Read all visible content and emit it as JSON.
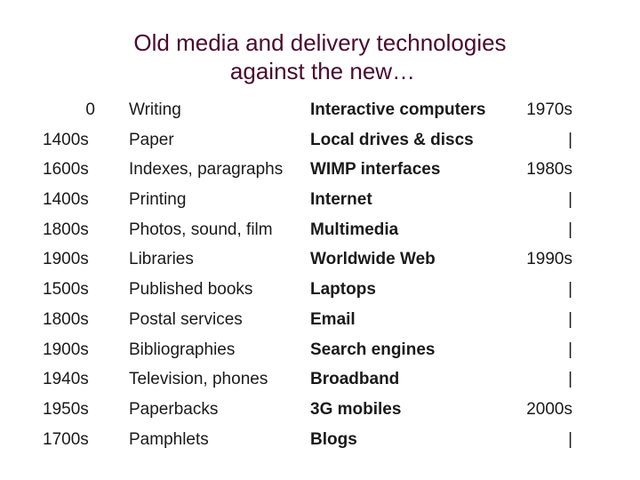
{
  "slide": {
    "title_line1": "Old media and delivery technologies",
    "title_line2": "against the new…",
    "rows": [
      {
        "date": "0",
        "old": "Writing",
        "new": "Interactive computers",
        "era": "1970s"
      },
      {
        "date": "1400s",
        "old": "Paper",
        "new": "Local drives & discs",
        "era": "|"
      },
      {
        "date": "1600s",
        "old": "Indexes, paragraphs",
        "new": "WIMP interfaces",
        "era": "1980s"
      },
      {
        "date": "1400s",
        "old": "Printing",
        "new": "Internet",
        "era": "|"
      },
      {
        "date": "1800s",
        "old": "Photos, sound, film",
        "new": "Multimedia",
        "era": "|"
      },
      {
        "date": "1900s",
        "old": "Libraries",
        "new": "Worldwide Web",
        "era": "1990s"
      },
      {
        "date": "1500s",
        "old": "Published books",
        "new": "Laptops",
        "era": "|"
      },
      {
        "date": "1800s",
        "old": "Postal services",
        "new": "Email",
        "era": "|"
      },
      {
        "date": "1900s",
        "old": "Bibliographies",
        "new": "Search engines",
        "era": "|"
      },
      {
        "date": "1940s",
        "old": "Television, phones",
        "new": "Broadband",
        "era": "|"
      },
      {
        "date": "1950s",
        "old": "Paperbacks",
        "new": "3G mobiles",
        "era": "2000s"
      },
      {
        "date": "1700s",
        "old": "Pamphlets",
        "new": "Blogs",
        "era": "|"
      }
    ]
  },
  "colors": {
    "title": "#4a0a2e",
    "text": "#1a1a1a",
    "background": "#ffffff"
  }
}
